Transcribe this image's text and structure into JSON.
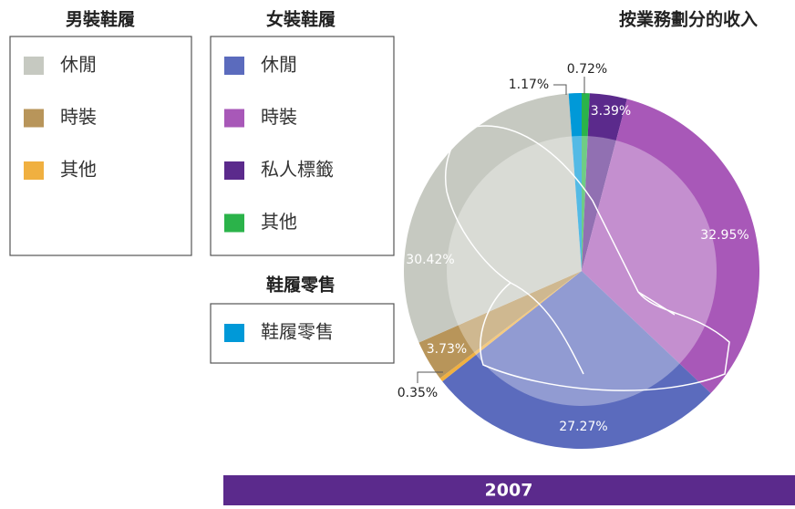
{
  "chart_data": {
    "type": "pie",
    "title": "按業務劃分的收入",
    "footer": "2007",
    "groups": [
      {
        "title": "男裝鞋履",
        "items": [
          {
            "name": "休閒",
            "color": "#c6c9c1",
            "value": 30.42,
            "value_label": "30.42%"
          },
          {
            "name": "時裝",
            "color": "#b8955a",
            "value": 3.73,
            "value_label": "3.73%"
          },
          {
            "name": "其他",
            "color": "#f0b040",
            "value": 0.35,
            "value_label": "0.35%"
          }
        ]
      },
      {
        "title": "女裝鞋履",
        "items": [
          {
            "name": "休閒",
            "color": "#5b6bbd",
            "value": 27.27,
            "value_label": "27.27%"
          },
          {
            "name": "時裝",
            "color": "#a858b8",
            "value": 32.95,
            "value_label": "32.95%"
          },
          {
            "name": "私人標籤",
            "color": "#5b2a8c",
            "value": 3.39,
            "value_label": "3.39%"
          },
          {
            "name": "其他",
            "color": "#2bb34a",
            "value": 0.72,
            "value_label": "0.72%"
          }
        ]
      },
      {
        "title": "鞋履零售",
        "items": [
          {
            "name": "鞋履零售",
            "color": "#0099d8",
            "value": 1.17,
            "value_label": "1.17%"
          }
        ]
      }
    ]
  }
}
